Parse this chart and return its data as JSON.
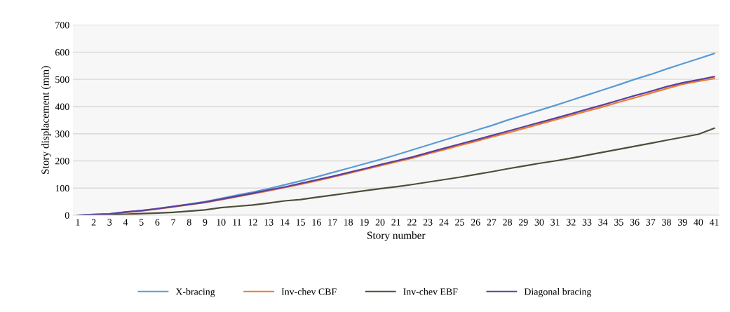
{
  "chart_data": {
    "type": "line",
    "xlabel": "Story number",
    "ylabel": "Story displacement (mm)",
    "categories": [
      "1",
      "2",
      "3",
      "4",
      "5",
      "6",
      "7",
      "8",
      "9",
      "10",
      "11",
      "12",
      "13",
      "14",
      "15",
      "16",
      "17",
      "18",
      "19",
      "20",
      "21",
      "22",
      "23",
      "24",
      "25",
      "26",
      "27",
      "28",
      "29",
      "30",
      "31",
      "32",
      "33",
      "34",
      "35",
      "36",
      "37",
      "38",
      "39",
      "40",
      "41"
    ],
    "series": [
      {
        "name": "X-bracing",
        "color": "#5b9bd5",
        "values": [
          0,
          3,
          5,
          12,
          17,
          25,
          33,
          41,
          50,
          62,
          74,
          85,
          98,
          112,
          126,
          141,
          157,
          173,
          189,
          205,
          222,
          240,
          258,
          276,
          294,
          312,
          330,
          350,
          368,
          386,
          404,
          423,
          442,
          461,
          480,
          500,
          518,
          538,
          557,
          576,
          595
        ]
      },
      {
        "name": "Inv-chev CBF",
        "color": "#ed7d31",
        "values": [
          null,
          null,
          4,
          10,
          16,
          23,
          31,
          39,
          47,
          57,
          68,
          79,
          90,
          102,
          114,
          127,
          140,
          154,
          168,
          182,
          196,
          210,
          226,
          241,
          257,
          272,
          288,
          303,
          319,
          335,
          351,
          367,
          383,
          399,
          416,
          432,
          449,
          466,
          482,
          493,
          503
        ]
      },
      {
        "name": "Inv-chev EBF",
        "color": "#4d4d3a",
        "values": [
          0,
          1,
          2,
          4,
          6,
          8,
          11,
          15,
          20,
          28,
          33,
          38,
          45,
          53,
          58,
          66,
          74,
          82,
          90,
          98,
          105,
          113,
          122,
          131,
          140,
          150,
          160,
          171,
          181,
          191,
          200,
          210,
          221,
          232,
          243,
          254,
          265,
          276,
          287,
          298,
          320
        ]
      },
      {
        "name": "Diagonal bracing",
        "color": "#5b3fa0",
        "values": [
          0,
          3,
          5,
          12,
          17,
          24,
          32,
          40,
          48,
          59,
          70,
          81,
          93,
          104,
          117,
          130,
          143,
          157,
          171,
          186,
          200,
          214,
          230,
          246,
          262,
          277,
          293,
          309,
          325,
          341,
          357,
          373,
          390,
          406,
          423,
          440,
          456,
          473,
          487,
          498,
          510
        ]
      }
    ],
    "ylim": [
      0,
      700
    ],
    "yticks": [
      0,
      100,
      200,
      300,
      400,
      500,
      600,
      700
    ],
    "grid": "y",
    "legend": "bottom",
    "marker": "none",
    "line_style": "solid"
  }
}
